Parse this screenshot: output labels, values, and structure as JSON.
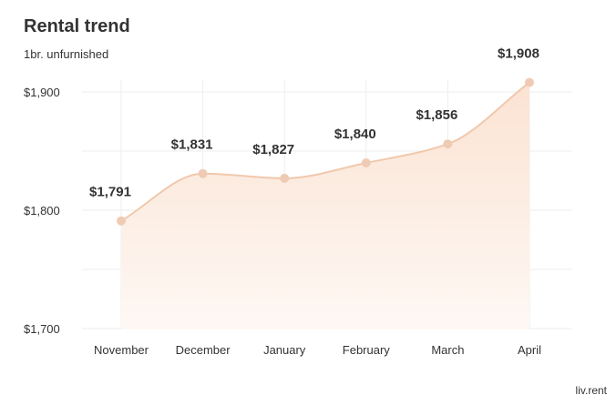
{
  "chart": {
    "title": "Rental trend",
    "subtitle": "1br. unfurnished"
  },
  "brand": {
    "label": "liv.rent"
  },
  "colors": {
    "line": "#f1c8ad",
    "point": "#efcbb3",
    "area_top": "#fbe3d3",
    "area_bottom": "#fef8f4",
    "grid": "#eeeeee",
    "text": "#333333"
  },
  "chart_data": {
    "type": "area",
    "title": "Rental trend",
    "subtitle": "1br. unfurnished",
    "xlabel": "",
    "ylabel": "",
    "categories": [
      "November",
      "December",
      "January",
      "February",
      "March",
      "April"
    ],
    "values": [
      1791,
      1831,
      1827,
      1840,
      1856,
      1908
    ],
    "data_labels": [
      "$1,791",
      "$1,831",
      "$1,827",
      "$1,840",
      "$1,856",
      "$1,908"
    ],
    "ylim": [
      1700,
      1925
    ],
    "yticks": [
      1700,
      1800,
      1900
    ],
    "ytick_labels": [
      "$1,700",
      "$1,800",
      "$1,900"
    ],
    "grid": true,
    "smooth": true,
    "legend": "none"
  }
}
